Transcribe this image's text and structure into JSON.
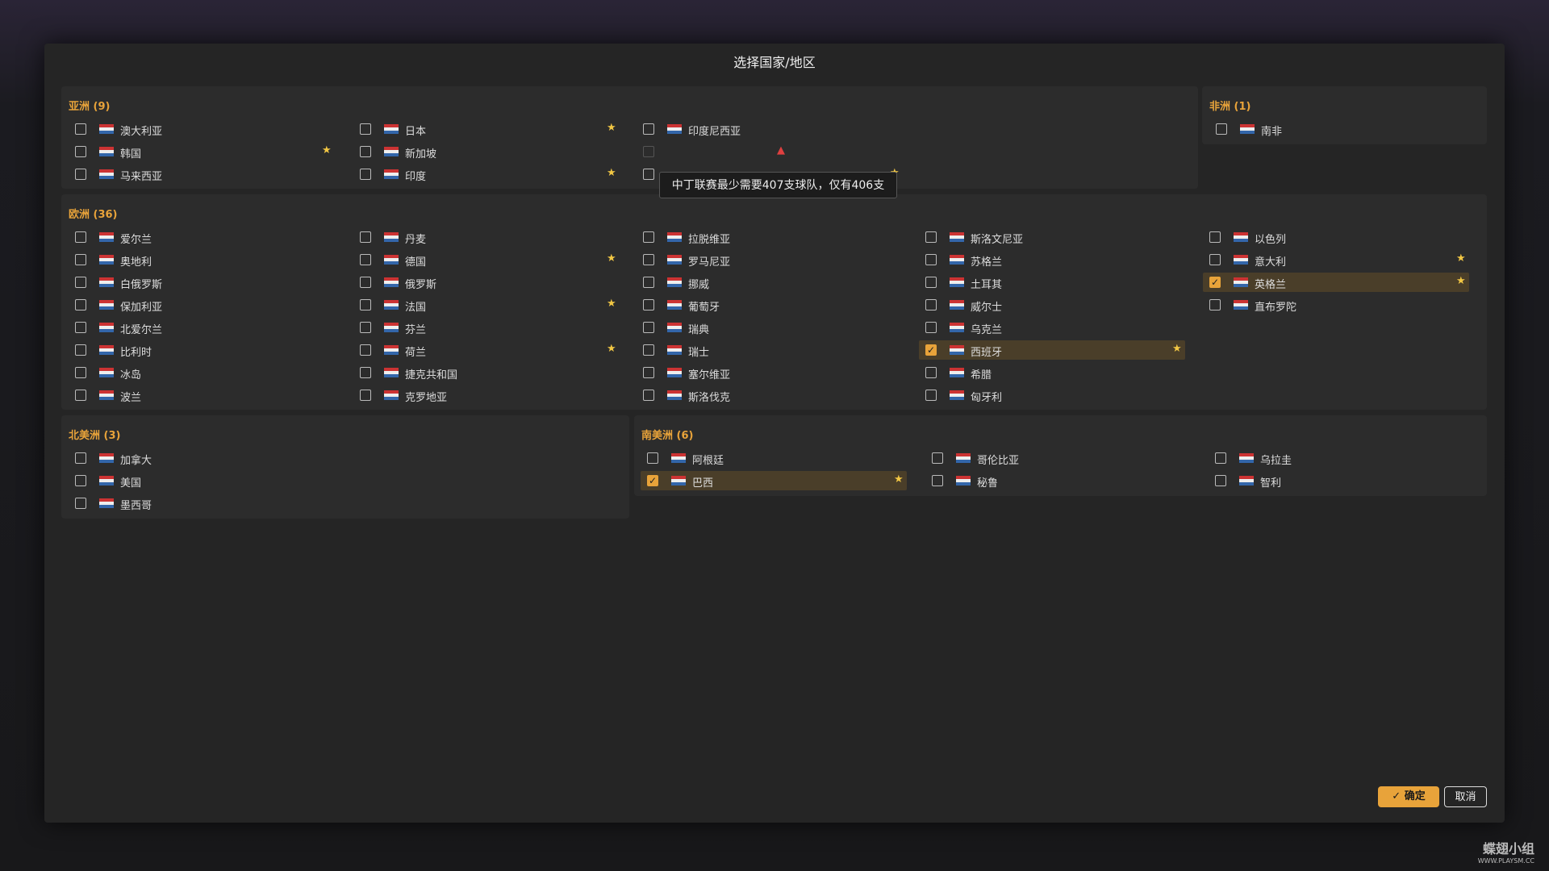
{
  "dialog": {
    "title": "选择国家/地区",
    "regions": [
      {
        "name": "亚洲 (9)",
        "countries": [
          {
            "name": "澳大利亚"
          },
          {
            "name": "韩国",
            "starred": true
          },
          {
            "name": "马来西亚"
          },
          {
            "name": "日本",
            "starred": true
          },
          {
            "name": "新加坡"
          },
          {
            "name": "印度",
            "starred": true
          },
          {
            "name": "印度尼西亚"
          },
          {
            "disabled": true,
            "warning": true
          },
          {
            "starred": true
          }
        ]
      },
      {
        "name": "非洲 (1)",
        "countries": [
          {
            "name": "南非"
          }
        ]
      },
      {
        "name": "欧洲 (36)",
        "countries": [
          {
            "name": "爱尔兰"
          },
          {
            "name": "奥地利"
          },
          {
            "name": "白俄罗斯"
          },
          {
            "name": "保加利亚"
          },
          {
            "name": "北爱尔兰"
          },
          {
            "name": "比利时"
          },
          {
            "name": "冰岛"
          },
          {
            "name": "波兰"
          },
          {
            "name": "丹麦"
          },
          {
            "name": "德国",
            "starred": true
          },
          {
            "name": "俄罗斯"
          },
          {
            "name": "法国",
            "starred": true
          },
          {
            "name": "芬兰"
          },
          {
            "name": "荷兰",
            "starred": true
          },
          {
            "name": "捷克共和国"
          },
          {
            "name": "克罗地亚"
          },
          {
            "name": "拉脱维亚"
          },
          {
            "name": "罗马尼亚"
          },
          {
            "name": "挪威"
          },
          {
            "name": "葡萄牙"
          },
          {
            "name": "瑞典"
          },
          {
            "name": "瑞士"
          },
          {
            "name": "塞尔维亚"
          },
          {
            "name": "斯洛伐克"
          },
          {
            "name": "斯洛文尼亚"
          },
          {
            "name": "苏格兰"
          },
          {
            "name": "土耳其"
          },
          {
            "name": "威尔士"
          },
          {
            "name": "乌克兰"
          },
          {
            "name": "西班牙",
            "checked": true,
            "starred": true
          },
          {
            "name": "希腊"
          },
          {
            "name": "匈牙利"
          },
          {
            "name": "以色列"
          },
          {
            "name": "意大利",
            "starred": true
          },
          {
            "name": "英格兰",
            "checked": true,
            "starred": true
          },
          {
            "name": "直布罗陀"
          }
        ]
      },
      {
        "name": "北美洲 (3)",
        "countries": [
          {
            "name": "加拿大"
          },
          {
            "name": "美国"
          },
          {
            "name": "墨西哥"
          }
        ]
      },
      {
        "name": "南美洲 (6)",
        "countries": [
          {
            "name": "阿根廷"
          },
          {
            "name": "巴西",
            "checked": true,
            "starred": true
          },
          {
            "name": "哥伦比亚"
          },
          {
            "name": "秘鲁"
          },
          {
            "name": "乌拉圭"
          },
          {
            "name": "智利"
          }
        ]
      }
    ],
    "tooltip": "中丁联赛最少需要407支球队，仅有406支",
    "confirm": "确定",
    "cancel": "取消"
  },
  "watermark": {
    "title": "蝶翅小组",
    "url": "WWW.PLAYSM.CC"
  }
}
